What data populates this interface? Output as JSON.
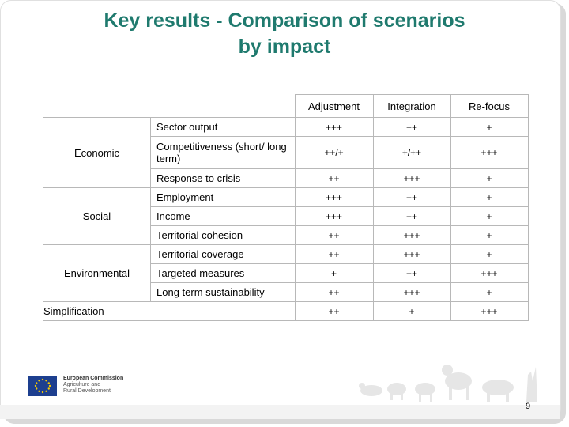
{
  "title_line1": "Key results - Comparison of scenarios",
  "title_line2": "by impact",
  "headers": [
    "Adjustment",
    "Integration",
    "Re-focus"
  ],
  "rows": [
    {
      "dim": "Economic",
      "crit": "Sector output",
      "vals": [
        "+++",
        "++",
        "+"
      ]
    },
    {
      "crit": "Competitiveness (short/ long term)",
      "vals": [
        "++/+",
        "+/++",
        "+++"
      ]
    },
    {
      "crit": "Response to crisis",
      "vals": [
        "++",
        "+++",
        "+"
      ]
    },
    {
      "dim": "Social",
      "crit": "Employment",
      "vals": [
        "+++",
        "++",
        "+"
      ]
    },
    {
      "crit": "Income",
      "vals": [
        "+++",
        "++",
        "+"
      ]
    },
    {
      "crit": "Territorial cohesion",
      "vals": [
        "++",
        "+++",
        "+"
      ]
    },
    {
      "dim": "Environmental",
      "crit": "Territorial coverage",
      "vals": [
        "++",
        "+++",
        "+"
      ]
    },
    {
      "crit": "Targeted measures",
      "vals": [
        "+",
        "++",
        "+++"
      ]
    },
    {
      "crit": "Long term sustainability",
      "vals": [
        "++",
        "+++",
        "+"
      ]
    },
    {
      "dim": "Simplification",
      "crit": "",
      "vals": [
        "++",
        "+",
        "+++"
      ]
    }
  ],
  "footer": {
    "org_line1": "European Commission",
    "org_line2": "Agriculture and",
    "org_line3": "Rural Development",
    "page_number": "9"
  },
  "colors": {
    "title": "#1f7a6e",
    "eu_blue": "#1d3f8f",
    "eu_star": "#f5c800"
  },
  "icons": [
    "eu-flag-icon",
    "farm-animals-illustration"
  ]
}
